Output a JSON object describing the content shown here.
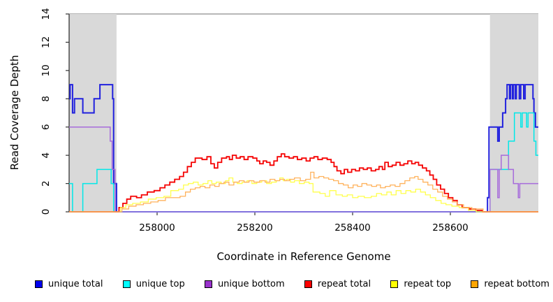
{
  "figure": {
    "x_axis_label": "Coordinate in Reference Genome",
    "y_axis_label": "Read Coverage Depth"
  },
  "colors": {
    "background": "#ffffff",
    "shaded_region": "#d9d9d9",
    "top_border": "#8c8c8c",
    "axis": "#333333",
    "text": "#000000"
  },
  "chart_data": {
    "type": "line",
    "subtype": "step-coverage",
    "title": "",
    "xlabel": "Coordinate in Reference Genome",
    "ylabel": "Read Coverage Depth",
    "xlim": [
      257820,
      258780
    ],
    "ylim": [
      0,
      14
    ],
    "x_ticks": [
      258000,
      258200,
      258400,
      258600
    ],
    "y_ticks": [
      0,
      2,
      4,
      6,
      8,
      10,
      12,
      14
    ],
    "grid": false,
    "legend_position": "bottom",
    "shaded_regions": [
      [
        257820,
        257917
      ],
      [
        258681,
        258780
      ]
    ],
    "series": [
      {
        "name": "unique total",
        "line_color": "#2121de",
        "legend_color": "#0000ee",
        "line_width": 2,
        "points": [
          [
            257820,
            8
          ],
          [
            257822,
            9
          ],
          [
            257827,
            7
          ],
          [
            257831,
            8
          ],
          [
            257848,
            7
          ],
          [
            257871,
            8
          ],
          [
            257883,
            9
          ],
          [
            257909,
            8
          ],
          [
            257911,
            2
          ],
          [
            257917,
            0
          ],
          [
            258676,
            1
          ],
          [
            258679,
            6
          ],
          [
            258697,
            5
          ],
          [
            258700,
            6
          ],
          [
            258707,
            7
          ],
          [
            258713,
            8
          ],
          [
            258716,
            9
          ],
          [
            258721,
            8
          ],
          [
            258723,
            9
          ],
          [
            258727,
            8
          ],
          [
            258729,
            9
          ],
          [
            258733,
            8
          ],
          [
            258735,
            9
          ],
          [
            258741,
            8
          ],
          [
            258744,
            9
          ],
          [
            258750,
            8
          ],
          [
            258753,
            9
          ],
          [
            258769,
            8
          ],
          [
            258771,
            7
          ],
          [
            258774,
            6
          ]
        ]
      },
      {
        "name": "unique top",
        "line_color": "#00e8e8",
        "legend_color": "#00ffff",
        "line_width": 1.5,
        "points": [
          [
            257820,
            2
          ],
          [
            257827,
            0
          ],
          [
            257848,
            2
          ],
          [
            257877,
            3
          ],
          [
            257906,
            2
          ],
          [
            257911,
            0
          ],
          [
            258681,
            3
          ],
          [
            258719,
            5
          ],
          [
            258731,
            7
          ],
          [
            258744,
            6
          ],
          [
            258747,
            7
          ],
          [
            258756,
            6
          ],
          [
            258759,
            7
          ],
          [
            258771,
            5
          ],
          [
            258775,
            4
          ]
        ]
      },
      {
        "name": "unique bottom",
        "line_color": "#a76bdb",
        "legend_color": "#9932cc",
        "line_width": 1.5,
        "points": [
          [
            257820,
            6
          ],
          [
            257904,
            5
          ],
          [
            257908,
            3
          ],
          [
            257914,
            0
          ],
          [
            258681,
            3
          ],
          [
            258697,
            1
          ],
          [
            258700,
            3
          ],
          [
            258704,
            4
          ],
          [
            258719,
            3
          ],
          [
            258729,
            2
          ],
          [
            258739,
            1
          ],
          [
            258742,
            2
          ]
        ]
      },
      {
        "name": "repeat total",
        "line_color": "#f50000",
        "legend_color": "#ff0000",
        "line_width": 1.8,
        "points": [
          [
            257820,
            0
          ],
          [
            257922,
            0.3
          ],
          [
            257930,
            0.6
          ],
          [
            257938,
            0.9
          ],
          [
            257946,
            1.1
          ],
          [
            257958,
            1.0
          ],
          [
            257968,
            1.2
          ],
          [
            257980,
            1.4
          ],
          [
            257994,
            1.5
          ],
          [
            258006,
            1.7
          ],
          [
            258016,
            1.9
          ],
          [
            258026,
            2.1
          ],
          [
            258036,
            2.3
          ],
          [
            258046,
            2.5
          ],
          [
            258054,
            2.8
          ],
          [
            258062,
            3.2
          ],
          [
            258070,
            3.5
          ],
          [
            258078,
            3.8
          ],
          [
            258092,
            3.7
          ],
          [
            258102,
            3.9
          ],
          [
            258110,
            3.4
          ],
          [
            258117,
            3.1
          ],
          [
            258124,
            3.5
          ],
          [
            258132,
            3.8
          ],
          [
            258142,
            3.9
          ],
          [
            258148,
            3.7
          ],
          [
            258154,
            4.0
          ],
          [
            258162,
            3.8
          ],
          [
            258170,
            3.9
          ],
          [
            258178,
            3.7
          ],
          [
            258186,
            3.9
          ],
          [
            258196,
            3.8
          ],
          [
            258204,
            3.6
          ],
          [
            258210,
            3.4
          ],
          [
            258217,
            3.6
          ],
          [
            258224,
            3.5
          ],
          [
            258231,
            3.3
          ],
          [
            258239,
            3.6
          ],
          [
            258246,
            3.9
          ],
          [
            258254,
            4.1
          ],
          [
            258261,
            3.9
          ],
          [
            258270,
            3.8
          ],
          [
            258279,
            3.9
          ],
          [
            258287,
            3.7
          ],
          [
            258296,
            3.8
          ],
          [
            258305,
            3.6
          ],
          [
            258313,
            3.8
          ],
          [
            258321,
            3.9
          ],
          [
            258329,
            3.7
          ],
          [
            258338,
            3.8
          ],
          [
            258348,
            3.7
          ],
          [
            258356,
            3.5
          ],
          [
            258362,
            3.2
          ],
          [
            258368,
            2.9
          ],
          [
            258376,
            2.7
          ],
          [
            258383,
            3.0
          ],
          [
            258390,
            2.8
          ],
          [
            258398,
            3.0
          ],
          [
            258406,
            2.9
          ],
          [
            258414,
            3.1
          ],
          [
            258422,
            3.0
          ],
          [
            258430,
            3.1
          ],
          [
            258438,
            2.9
          ],
          [
            258447,
            3.0
          ],
          [
            258454,
            3.2
          ],
          [
            258461,
            3.0
          ],
          [
            258466,
            3.5
          ],
          [
            258473,
            3.2
          ],
          [
            258481,
            3.3
          ],
          [
            258489,
            3.5
          ],
          [
            258497,
            3.3
          ],
          [
            258505,
            3.4
          ],
          [
            258513,
            3.6
          ],
          [
            258521,
            3.4
          ],
          [
            258528,
            3.5
          ],
          [
            258535,
            3.3
          ],
          [
            258543,
            3.1
          ],
          [
            258551,
            2.9
          ],
          [
            258558,
            2.6
          ],
          [
            258565,
            2.3
          ],
          [
            258572,
            1.9
          ],
          [
            258580,
            1.6
          ],
          [
            258588,
            1.3
          ],
          [
            258596,
            1.0
          ],
          [
            258605,
            0.8
          ],
          [
            258614,
            0.5
          ],
          [
            258624,
            0.3
          ],
          [
            258638,
            0.2
          ],
          [
            258652,
            0.1
          ],
          [
            258666,
            0
          ]
        ]
      },
      {
        "name": "repeat top",
        "line_color": "#ffff4d",
        "legend_color": "#ffff00",
        "line_width": 1.3,
        "points": [
          [
            257820,
            0
          ],
          [
            257925,
            0.3
          ],
          [
            257936,
            0.5
          ],
          [
            257950,
            0.6
          ],
          [
            257966,
            0.7
          ],
          [
            257982,
            0.9
          ],
          [
            257998,
            1.0
          ],
          [
            258014,
            1.1
          ],
          [
            258028,
            1.5
          ],
          [
            258044,
            1.6
          ],
          [
            258054,
            1.9
          ],
          [
            258064,
            2.0
          ],
          [
            258074,
            2.1
          ],
          [
            258084,
            1.9
          ],
          [
            258094,
            2.0
          ],
          [
            258104,
            2.2
          ],
          [
            258112,
            2.0
          ],
          [
            258121,
            2.1
          ],
          [
            258131,
            2.0
          ],
          [
            258140,
            2.2
          ],
          [
            258147,
            2.4
          ],
          [
            258155,
            2.1
          ],
          [
            258164,
            2.0
          ],
          [
            258174,
            2.1
          ],
          [
            258184,
            2.2
          ],
          [
            258194,
            2.0
          ],
          [
            258204,
            2.1
          ],
          [
            258214,
            2.2
          ],
          [
            258224,
            2.0
          ],
          [
            258234,
            2.1
          ],
          [
            258244,
            2.2
          ],
          [
            258251,
            2.4
          ],
          [
            258258,
            2.2
          ],
          [
            258265,
            2.3
          ],
          [
            258273,
            2.1
          ],
          [
            258281,
            2.2
          ],
          [
            258291,
            2.0
          ],
          [
            258301,
            2.1
          ],
          [
            258311,
            2.0
          ],
          [
            258319,
            1.4
          ],
          [
            258333,
            1.3
          ],
          [
            258344,
            1.1
          ],
          [
            258353,
            1.5
          ],
          [
            258366,
            1.2
          ],
          [
            258379,
            1.1
          ],
          [
            258389,
            1.2
          ],
          [
            258400,
            1.0
          ],
          [
            258411,
            1.1
          ],
          [
            258424,
            1.0
          ],
          [
            258438,
            1.1
          ],
          [
            258449,
            1.3
          ],
          [
            258459,
            1.2
          ],
          [
            258470,
            1.4
          ],
          [
            258479,
            1.2
          ],
          [
            258489,
            1.5
          ],
          [
            258499,
            1.3
          ],
          [
            258509,
            1.5
          ],
          [
            258519,
            1.4
          ],
          [
            258529,
            1.6
          ],
          [
            258539,
            1.4
          ],
          [
            258549,
            1.2
          ],
          [
            258559,
            1.0
          ],
          [
            258570,
            0.8
          ],
          [
            258581,
            0.6
          ],
          [
            258591,
            0.5
          ],
          [
            258603,
            0.4
          ],
          [
            258618,
            0.3
          ],
          [
            258637,
            0.1
          ],
          [
            258653,
            0
          ]
        ]
      },
      {
        "name": "repeat bottom",
        "line_color": "#ffb25c",
        "legend_color": "#ffa500",
        "line_width": 1.3,
        "points": [
          [
            257820,
            0
          ],
          [
            257928,
            0.2
          ],
          [
            257942,
            0.4
          ],
          [
            257957,
            0.5
          ],
          [
            257972,
            0.6
          ],
          [
            257987,
            0.7
          ],
          [
            258002,
            0.8
          ],
          [
            258017,
            1.0
          ],
          [
            258047,
            1.1
          ],
          [
            258058,
            1.4
          ],
          [
            258068,
            1.6
          ],
          [
            258078,
            1.7
          ],
          [
            258088,
            1.8
          ],
          [
            258098,
            1.7
          ],
          [
            258108,
            1.9
          ],
          [
            258118,
            1.8
          ],
          [
            258127,
            2.0
          ],
          [
            258137,
            2.1
          ],
          [
            258147,
            1.9
          ],
          [
            258157,
            2.1
          ],
          [
            258168,
            2.2
          ],
          [
            258178,
            2.1
          ],
          [
            258188,
            2.2
          ],
          [
            258198,
            2.1
          ],
          [
            258210,
            2.2
          ],
          [
            258221,
            2.1
          ],
          [
            258231,
            2.3
          ],
          [
            258241,
            2.2
          ],
          [
            258251,
            2.3
          ],
          [
            258261,
            2.2
          ],
          [
            258271,
            2.3
          ],
          [
            258281,
            2.4
          ],
          [
            258293,
            2.2
          ],
          [
            258304,
            2.3
          ],
          [
            258314,
            2.8
          ],
          [
            258321,
            2.4
          ],
          [
            258331,
            2.5
          ],
          [
            258341,
            2.4
          ],
          [
            258351,
            2.3
          ],
          [
            258361,
            2.2
          ],
          [
            258371,
            2.0
          ],
          [
            258381,
            1.9
          ],
          [
            258391,
            1.7
          ],
          [
            258401,
            1.9
          ],
          [
            258410,
            1.8
          ],
          [
            258419,
            2.0
          ],
          [
            258429,
            1.9
          ],
          [
            258439,
            1.8
          ],
          [
            258449,
            1.9
          ],
          [
            258457,
            1.7
          ],
          [
            258467,
            1.8
          ],
          [
            258477,
            1.9
          ],
          [
            258487,
            1.8
          ],
          [
            258497,
            2.0
          ],
          [
            258507,
            2.2
          ],
          [
            258517,
            2.4
          ],
          [
            258527,
            2.5
          ],
          [
            258534,
            2.3
          ],
          [
            258544,
            2.1
          ],
          [
            258554,
            1.9
          ],
          [
            258564,
            1.6
          ],
          [
            258574,
            1.4
          ],
          [
            258584,
            1.1
          ],
          [
            258594,
            0.9
          ],
          [
            258604,
            0.7
          ],
          [
            258614,
            0.5
          ],
          [
            258627,
            0.3
          ],
          [
            258644,
            0.2
          ],
          [
            258667,
            0
          ]
        ]
      }
    ]
  },
  "legend": {
    "items": [
      "unique total",
      "unique top",
      "unique bottom",
      "repeat total",
      "repeat top",
      "repeat bottom"
    ]
  }
}
